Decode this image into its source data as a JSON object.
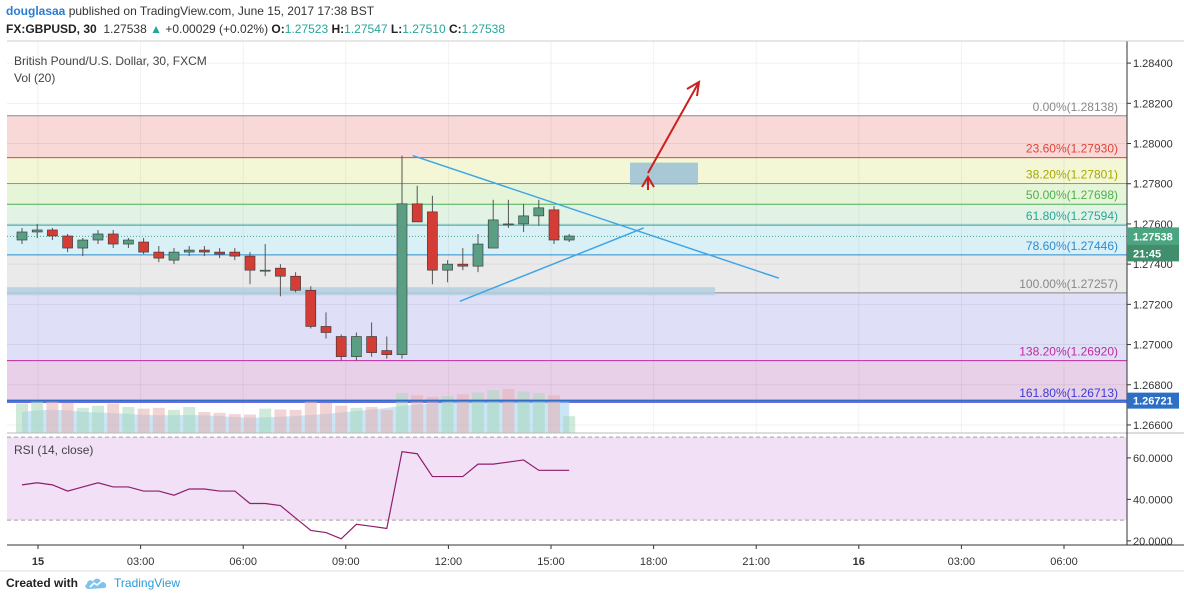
{
  "header": {
    "author": "douglasaa",
    "published_text": "published on TradingView.com, June 15, 2017 17:38 BST",
    "symbol": "FX:GBPUSD, 30",
    "last": "1.27538",
    "change_arrow": "▲",
    "change": "+0.00029 (+0.02%)",
    "o_label": "O:",
    "o": "1.27523",
    "h_label": "H:",
    "h": "1.27547",
    "l_label": "L:",
    "l": "1.27510",
    "c_label": "C:",
    "c": "1.27538"
  },
  "footer": {
    "created_with": "Created with",
    "brand": "TradingView"
  },
  "chart_data": {
    "type": "candlestick",
    "title": "British Pound/U.S. Dollar, 30, FXCM",
    "volume_label": "Vol (20)",
    "rsi_label": "RSI (14, close)",
    "ylim": [
      1.2656,
      1.2851
    ],
    "y_ticks": [
      "1.28400",
      "1.28200",
      "1.28000",
      "1.27800",
      "1.27600",
      "1.27400",
      "1.27200",
      "1.27000",
      "1.26800",
      "1.26600"
    ],
    "rsi_ylim": [
      18,
      72
    ],
    "rsi_ticks": [
      "60.0000",
      "40.0000",
      "20.0000"
    ],
    "rsi_bands": [
      70,
      30
    ],
    "x_ticks": [
      "15",
      "03:00",
      "06:00",
      "09:00",
      "12:00",
      "15:00",
      "18:00",
      "21:00",
      "16",
      "03:00",
      "06:00"
    ],
    "price_tag": "1.27538",
    "countdown_tag": "21:45",
    "lower_tag": "1.26721",
    "candles": [
      [
        1.2752,
        1.2758,
        1.275,
        1.2756
      ],
      [
        1.2756,
        1.276,
        1.2753,
        1.2757
      ],
      [
        1.2757,
        1.2758,
        1.2752,
        1.2754
      ],
      [
        1.2754,
        1.2755,
        1.2746,
        1.2748
      ],
      [
        1.2748,
        1.2753,
        1.2744,
        1.2752
      ],
      [
        1.2752,
        1.2757,
        1.275,
        1.2755
      ],
      [
        1.2755,
        1.2757,
        1.2748,
        1.275
      ],
      [
        1.275,
        1.2753,
        1.2748,
        1.2752
      ],
      [
        1.2751,
        1.2753,
        1.2745,
        1.2746
      ],
      [
        1.2746,
        1.2749,
        1.2741,
        1.2743
      ],
      [
        1.2742,
        1.2748,
        1.274,
        1.2746
      ],
      [
        1.2746,
        1.2749,
        1.2744,
        1.2747
      ],
      [
        1.2747,
        1.2749,
        1.2744,
        1.2746
      ],
      [
        1.2746,
        1.2748,
        1.2743,
        1.2745
      ],
      [
        1.2746,
        1.2748,
        1.2742,
        1.2744
      ],
      [
        1.2744,
        1.2746,
        1.273,
        1.2737
      ],
      [
        1.2737,
        1.275,
        1.2734,
        1.2737
      ],
      [
        1.2738,
        1.274,
        1.2724,
        1.2734
      ],
      [
        1.2734,
        1.2736,
        1.2726,
        1.2727
      ],
      [
        1.2727,
        1.2729,
        1.2708,
        1.2709
      ],
      [
        1.2709,
        1.2716,
        1.2703,
        1.2706
      ],
      [
        1.2704,
        1.2705,
        1.2692,
        1.2694
      ],
      [
        1.2694,
        1.2706,
        1.2692,
        1.2704
      ],
      [
        1.2704,
        1.2711,
        1.2694,
        1.2696
      ],
      [
        1.2697,
        1.2704,
        1.2693,
        1.2695
      ],
      [
        1.2695,
        1.2794,
        1.2693,
        1.277
      ],
      [
        1.277,
        1.2779,
        1.2761,
        1.2761
      ],
      [
        1.2766,
        1.2774,
        1.273,
        1.2737
      ],
      [
        1.2737,
        1.2742,
        1.2731,
        1.274
      ],
      [
        1.274,
        1.2748,
        1.2737,
        1.2739
      ],
      [
        1.2739,
        1.2755,
        1.2736,
        1.275
      ],
      [
        1.2748,
        1.2772,
        1.2748,
        1.2762
      ],
      [
        1.276,
        1.2772,
        1.2758,
        1.276
      ],
      [
        1.276,
        1.277,
        1.2756,
        1.2764
      ],
      [
        1.2764,
        1.2772,
        1.2759,
        1.2768
      ],
      [
        1.2767,
        1.2769,
        1.275,
        1.2752
      ],
      [
        1.2752,
        1.2755,
        1.2751,
        1.2754
      ]
    ],
    "volumes": [
      70,
      75,
      78,
      72,
      60,
      65,
      70,
      62,
      58,
      60,
      55,
      62,
      50,
      48,
      45,
      44,
      58,
      56,
      55,
      75,
      72,
      65,
      60,
      62,
      55,
      95,
      90,
      86,
      88,
      92,
      96,
      102,
      105,
      99,
      95,
      90,
      40
    ],
    "volume_up": [
      true,
      true,
      false,
      false,
      true,
      true,
      false,
      true,
      false,
      false,
      true,
      true,
      false,
      false,
      false,
      false,
      true,
      false,
      false,
      false,
      false,
      false,
      true,
      false,
      false,
      true,
      false,
      false,
      true,
      false,
      true,
      true,
      false,
      true,
      true,
      false,
      true
    ],
    "volume_bands": [
      300,
      320,
      328,
      320,
      300,
      290,
      280,
      270,
      255,
      250,
      252,
      255,
      250,
      240,
      225,
      215,
      220,
      230,
      240,
      255,
      270,
      290,
      310,
      330,
      355,
      385,
      400,
      420,
      440,
      460,
      470,
      480,
      485,
      480,
      470,
      460,
      450
    ],
    "rsi": [
      47,
      48,
      47,
      44,
      46,
      48,
      46,
      46,
      44,
      44,
      42,
      45,
      45,
      44,
      44,
      38,
      38,
      37,
      31,
      25,
      24,
      21,
      28,
      27,
      26,
      63,
      62,
      51,
      51,
      51,
      57,
      57,
      58,
      59,
      54,
      54,
      54
    ],
    "fib_levels": [
      {
        "label": "0.00%(1.28138)",
        "value": 1.28138,
        "color": "#888888"
      },
      {
        "label": "23.60%(1.27930)",
        "value": 1.2793,
        "color": "#e0453a"
      },
      {
        "label": "38.20%(1.27801)",
        "value": 1.27801,
        "color": "#a8a800"
      },
      {
        "label": "50.00%(1.27698)",
        "value": 1.27698,
        "color": "#4caf50"
      },
      {
        "label": "61.80%(1.27594)",
        "value": 1.27594,
        "color": "#26a69a"
      },
      {
        "label": "78.60%(1.27446)",
        "value": 1.27446,
        "color": "#2b8ccf"
      },
      {
        "label": "100.00%(1.27257)",
        "value": 1.27257,
        "color": "#888888"
      },
      {
        "label": "138.20%(1.26920)",
        "value": 1.2692,
        "color": "#c02a9e"
      },
      {
        "label": "161.80%(1.26713)",
        "value": 1.26713,
        "color": "#3b3bd6"
      }
    ],
    "fib_fills": [
      "#f7d5d3",
      "#f2f6d0",
      "#e3f4d4",
      "#dff2e3",
      "#d6eef6",
      "#e8e8e8",
      "#dcdcf6",
      "#e5cbe7"
    ],
    "triangle": {
      "upper": [
        [
          25.7,
          1.2794
        ],
        [
          49.8,
          1.2733
        ]
      ],
      "lower": [
        [
          28.8,
          1.27215
        ],
        [
          40.9,
          1.2758
        ]
      ]
    },
    "support_zone": [
      1.27245,
      1.27285
    ],
    "target_box": [
      1.27795,
      1.27905
    ],
    "colors": {
      "up": "#5a9e84",
      "down": "#d43d35",
      "grid": "#eeeeee",
      "trend": "#3ea6e6",
      "arrow": "#cc1f1f",
      "price_tag": "#4aa580",
      "countdown": "#3f8f6c",
      "lower_tag": "#2c6fc4",
      "rsi_line": "#8e1f6b",
      "rsi_bg": "#f1e0f6",
      "zone": "#b5cfe0"
    }
  }
}
